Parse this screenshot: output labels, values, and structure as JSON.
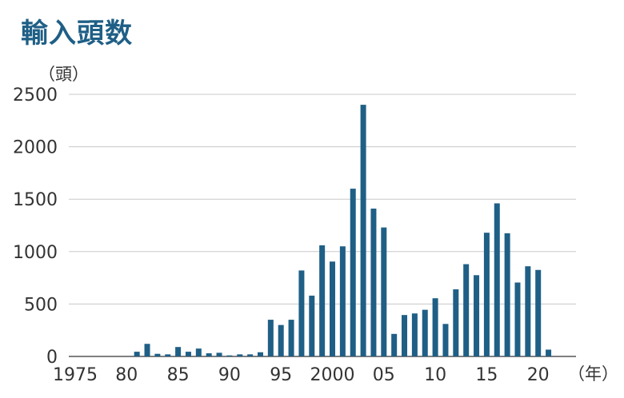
{
  "title": "輸入頭数",
  "chart_data": {
    "type": "bar",
    "y_unit": "（頭）",
    "x_unit": "（年）",
    "ylim": [
      0,
      2500
    ],
    "y_ticks": [
      0,
      500,
      1000,
      1500,
      2000,
      2500
    ],
    "y_tick_labels": [
      "0",
      "500",
      "1000",
      "1500",
      "2000",
      "2500"
    ],
    "x_ticks": [
      1975,
      1980,
      1985,
      1990,
      1995,
      2000,
      2005,
      2010,
      2015,
      2020
    ],
    "x_tick_labels": [
      "1975",
      "80",
      "85",
      "90",
      "95",
      "2000",
      "05",
      "10",
      "15",
      "20"
    ],
    "grid": true,
    "bar_color": "#1f5f86",
    "categories": [
      1975,
      1976,
      1977,
      1978,
      1979,
      1980,
      1981,
      1982,
      1983,
      1984,
      1985,
      1986,
      1987,
      1988,
      1989,
      1990,
      1991,
      1992,
      1993,
      1994,
      1995,
      1996,
      1997,
      1998,
      1999,
      2000,
      2001,
      2002,
      2003,
      2004,
      2005,
      2006,
      2007,
      2008,
      2009,
      2010,
      2011,
      2012,
      2013,
      2014,
      2015,
      2016,
      2017,
      2018,
      2019,
      2020,
      2021
    ],
    "values": [
      0,
      0,
      0,
      0,
      0,
      0,
      45,
      120,
      25,
      20,
      90,
      45,
      75,
      30,
      35,
      10,
      20,
      20,
      40,
      350,
      300,
      350,
      820,
      580,
      1060,
      905,
      1050,
      1600,
      2400,
      1410,
      1230,
      215,
      395,
      410,
      445,
      555,
      310,
      640,
      880,
      775,
      1180,
      1460,
      1175,
      705,
      860,
      825,
      65
    ]
  }
}
